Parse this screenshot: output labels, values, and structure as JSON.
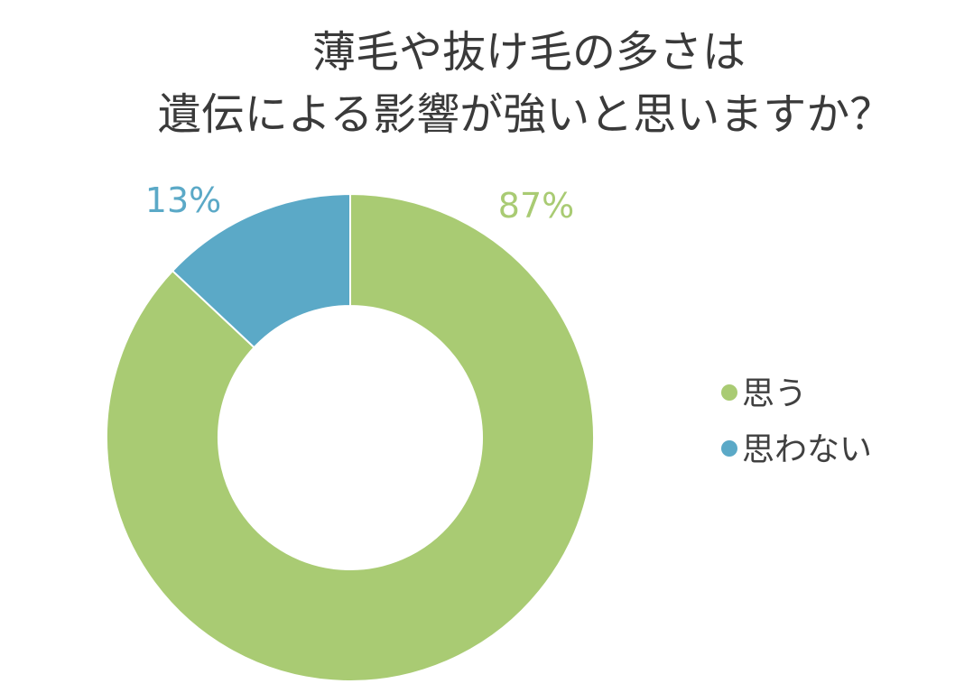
{
  "chart_data": {
    "type": "pie",
    "title_lines": [
      "薄毛や抜け毛の多さは",
      "遺伝による影響が強いと思いますか？"
    ],
    "categories": [
      "思う",
      "思わない"
    ],
    "values": [
      87,
      13
    ],
    "data_labels": [
      "87%",
      "13%"
    ],
    "colors": [
      "#a9cb73",
      "#5ba9c7"
    ],
    "legend_position": "right"
  }
}
